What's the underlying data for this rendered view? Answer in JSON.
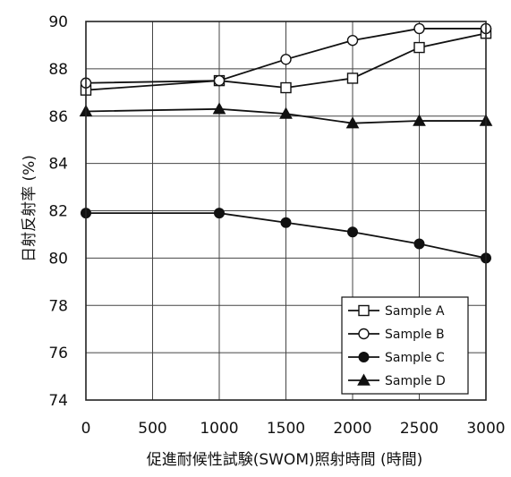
{
  "chart_data": {
    "type": "line",
    "xlabel": "促進耐候性試験(SWOM)照射時間 (時間)",
    "ylabel": "日射反射率 (%)",
    "x": [
      0,
      1000,
      1500,
      2000,
      2500,
      3000
    ],
    "xlim": [
      0,
      3000
    ],
    "ylim": [
      74,
      90
    ],
    "xticks": [
      "0",
      "500",
      "1000",
      "1500",
      "2000",
      "2500",
      "3000"
    ],
    "yticks": [
      "74",
      "76",
      "78",
      "80",
      "82",
      "84",
      "86",
      "88",
      "90"
    ],
    "grid": true,
    "legend_position": "bottom-right",
    "series": [
      {
        "name": "Sample A",
        "marker": "open-square",
        "values": [
          87.1,
          87.5,
          87.2,
          87.6,
          88.9,
          89.5
        ]
      },
      {
        "name": "Sample B",
        "marker": "open-circle",
        "values": [
          87.4,
          87.5,
          88.4,
          89.2,
          89.7,
          89.7
        ]
      },
      {
        "name": "Sample C",
        "marker": "filled-circle",
        "values": [
          81.9,
          81.9,
          81.5,
          81.1,
          80.6,
          80.0
        ]
      },
      {
        "name": "Sample D",
        "marker": "filled-triangle",
        "values": [
          86.2,
          86.3,
          86.1,
          85.7,
          85.8,
          85.8
        ]
      }
    ]
  }
}
